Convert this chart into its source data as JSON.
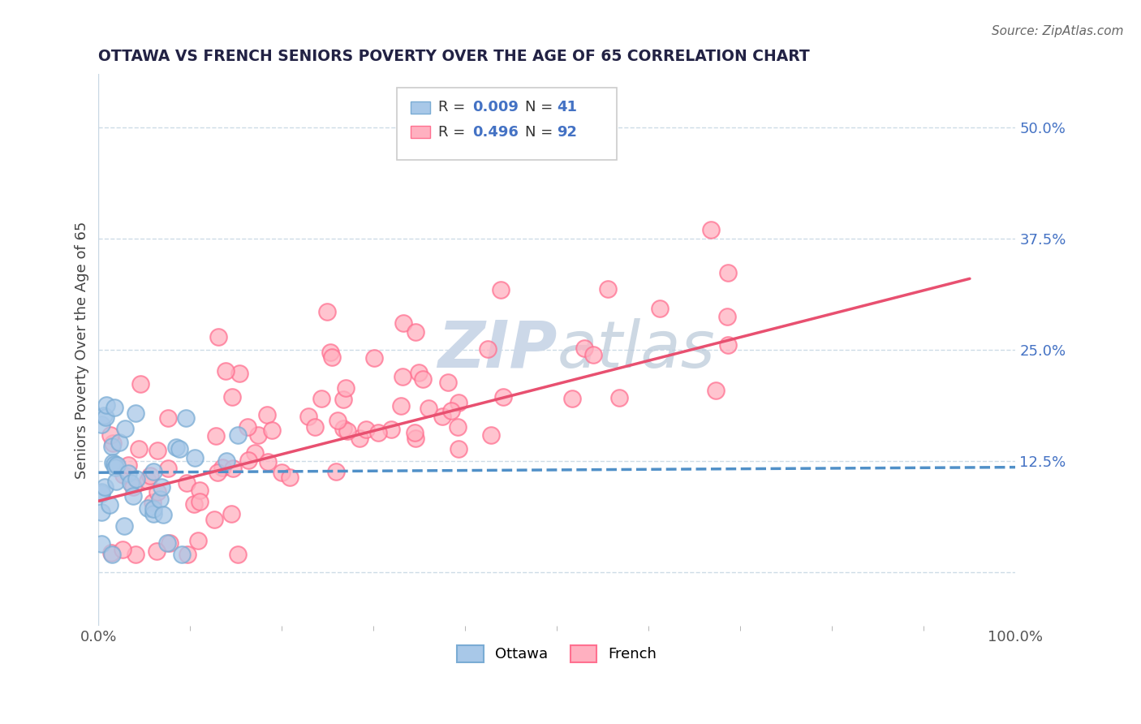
{
  "title": "OTTAWA VS FRENCH SENIORS POVERTY OVER THE AGE OF 65 CORRELATION CHART",
  "source": "Source: ZipAtlas.com",
  "ylabel": "Seniors Poverty Over the Age of 65",
  "xlim": [
    0.0,
    1.0
  ],
  "ylim": [
    -0.06,
    0.56
  ],
  "y_ticks": [
    0.0,
    0.125,
    0.25,
    0.375,
    0.5
  ],
  "y_tick_labels": [
    "",
    "12.5%",
    "25.0%",
    "37.5%",
    "50.0%"
  ],
  "x_ticks": [
    0.0,
    1.0
  ],
  "x_tick_labels": [
    "0.0%",
    "100.0%"
  ],
  "ottawa_color": "#a8c8e8",
  "ottawa_edge_color": "#7aacd4",
  "french_color": "#ffb0c0",
  "french_edge_color": "#ff7090",
  "ottawa_line_color": "#5090c8",
  "french_line_color": "#e85070",
  "grid_color": "#c8d8e4",
  "watermark_color": "#ccd8e8",
  "tick_color": "#4472c4",
  "title_color": "#222244",
  "legend_R_color": "#4472c4",
  "legend_text_color": "#333333",
  "ottawa_R": 0.009,
  "ottawa_N": 41,
  "french_R": 0.496,
  "french_N": 92,
  "ottawa_line_y0": 0.112,
  "ottawa_line_y1": 0.118,
  "french_line_y0": 0.08,
  "french_line_y1": 0.33
}
